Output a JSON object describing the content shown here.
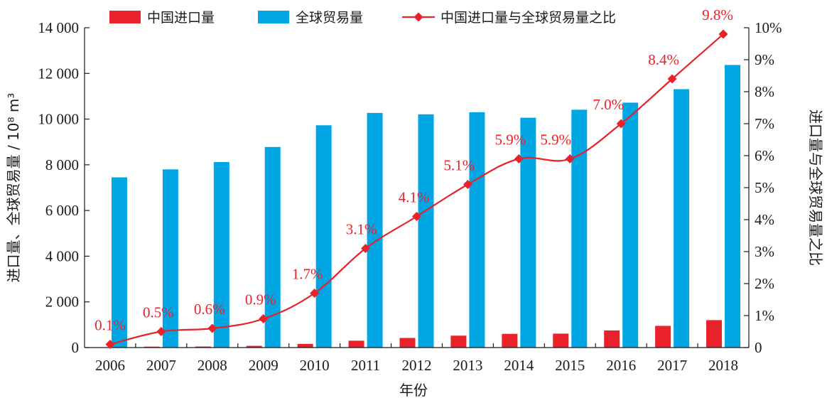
{
  "chart_data": {
    "type": "bar",
    "categories": [
      "2006",
      "2007",
      "2008",
      "2009",
      "2010",
      "2011",
      "2012",
      "2013",
      "2014",
      "2015",
      "2016",
      "2017",
      "2018"
    ],
    "series": [
      {
        "name": "中国进口量",
        "type": "bar",
        "axis": "left",
        "color": "#e8212a",
        "values": [
          10,
          40,
          45,
          75,
          160,
          300,
          420,
          520,
          600,
          610,
          750,
          950,
          1200
        ]
      },
      {
        "name": "全球贸易量",
        "type": "bar",
        "axis": "left",
        "color": "#00a7e4",
        "values": [
          7450,
          7800,
          8120,
          8780,
          9730,
          10270,
          10210,
          10300,
          10060,
          10410,
          10720,
          11310,
          12370
        ]
      },
      {
        "name": "中国进口量与全球贸易量之比",
        "type": "line",
        "axis": "right",
        "color": "#e8212a",
        "values": [
          0.1,
          0.5,
          0.6,
          0.9,
          1.7,
          3.1,
          4.1,
          5.1,
          5.9,
          5.9,
          7.0,
          8.4,
          9.8
        ],
        "labels": [
          "0.1%",
          "0.5%",
          "0.6%",
          "0.9%",
          "1.7%",
          "3.1%",
          "4.1%",
          "5.1%",
          "5.9%",
          "5.9%",
          "7.0%",
          "8.4%",
          "9.8%"
        ]
      }
    ],
    "xlabel": "年份",
    "ylabel": "进口量、全球贸易量 / 10⁸ m³",
    "y2label": "进口量与全球贸易量之比",
    "ylim": [
      0,
      14000
    ],
    "y2lim": [
      0,
      10
    ],
    "yticks": [
      "0",
      "2 000",
      "4 000",
      "6 000",
      "8 000",
      "10 000",
      "12 000",
      "14 000"
    ],
    "y2ticks": [
      "0",
      "1%",
      "2%",
      "3%",
      "4%",
      "5%",
      "6%",
      "7%",
      "8%",
      "9%",
      "10%"
    ],
    "legend_position": "top",
    "grid": false
  }
}
